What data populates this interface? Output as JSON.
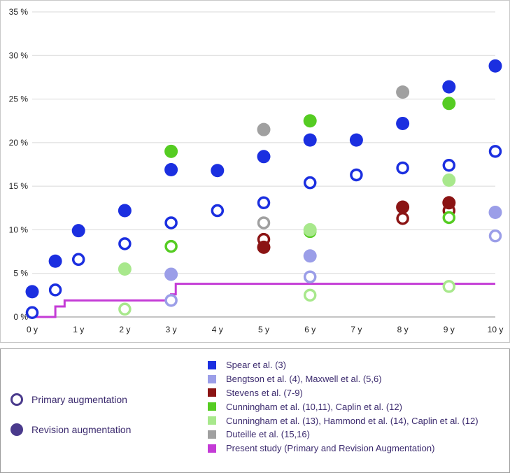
{
  "chart_data": {
    "type": "scatter",
    "title": "",
    "xlabel": "",
    "ylabel": "",
    "x_ticks": [
      "0 y",
      "1 y",
      "2 y",
      "3 y",
      "4 y",
      "5 y",
      "6 y",
      "7 y",
      "8 y",
      "9 y",
      "10 y"
    ],
    "y_ticks": [
      "0 %",
      "5 %",
      "10 %",
      "15 %",
      "20 %",
      "25 %",
      "30 %",
      "35 %"
    ],
    "xlim": [
      0,
      10
    ],
    "ylim": [
      0,
      35
    ],
    "grid": "horizontal",
    "series": [
      {
        "name": "Spear et al. (3)",
        "color": "#1b2fe0",
        "primary": [
          [
            0,
            0.5
          ],
          [
            0.5,
            3.1
          ],
          [
            1,
            6.6
          ],
          [
            2,
            8.4
          ],
          [
            3,
            10.8
          ],
          [
            4,
            12.2
          ],
          [
            5,
            13.1
          ],
          [
            6,
            15.4
          ],
          [
            7,
            16.3
          ],
          [
            8,
            17.1
          ],
          [
            9,
            17.4
          ],
          [
            10,
            19.0
          ]
        ],
        "revision": [
          [
            0,
            2.9
          ],
          [
            0.5,
            6.4
          ],
          [
            1,
            9.9
          ],
          [
            2,
            12.2
          ],
          [
            3,
            16.9
          ],
          [
            4,
            16.8
          ],
          [
            5,
            18.4
          ],
          [
            6,
            20.3
          ],
          [
            7,
            20.3
          ],
          [
            8,
            22.2
          ],
          [
            9,
            26.4
          ],
          [
            10,
            28.8
          ]
        ]
      },
      {
        "name": "Bengtson et al. (4), Maxwell et al. (5,6)",
        "color": "#9b9ee8",
        "primary": [
          [
            3,
            1.9
          ],
          [
            6,
            4.6
          ],
          [
            10,
            9.3
          ]
        ],
        "revision": [
          [
            3,
            4.9
          ],
          [
            6,
            7.0
          ],
          [
            10,
            12.0
          ]
        ]
      },
      {
        "name": "Stevens et al. (7-9)",
        "color": "#8b1414",
        "primary": [
          [
            5,
            8.9
          ],
          [
            8,
            11.3
          ],
          [
            9,
            12.2
          ]
        ],
        "revision": [
          [
            5,
            8.0
          ],
          [
            8,
            12.6
          ],
          [
            9,
            13.1
          ]
        ]
      },
      {
        "name": "Cunningham et al. (10,11), Caplin et al. (12)",
        "color": "#55cc22",
        "primary": [
          [
            3,
            8.1
          ],
          [
            6,
            9.8
          ],
          [
            9,
            11.4
          ]
        ],
        "revision": [
          [
            3,
            19.0
          ],
          [
            6,
            22.5
          ],
          [
            9,
            24.5
          ]
        ]
      },
      {
        "name": "Cunningham et al. (13), Hammond et al. (14), Caplin et al. (12)",
        "color": "#a8e88c",
        "primary": [
          [
            2,
            0.9
          ],
          [
            6,
            2.5
          ],
          [
            9,
            3.5
          ]
        ],
        "revision": [
          [
            2,
            5.5
          ],
          [
            6,
            10.0
          ],
          [
            9,
            15.7
          ]
        ]
      },
      {
        "name": "Duteille et al. (15,16)",
        "color": "#a0a0a0",
        "primary": [
          [
            5,
            10.8
          ]
        ],
        "revision": [
          [
            5,
            21.5
          ],
          [
            8,
            25.8
          ]
        ]
      },
      {
        "name": "Present study (Primary and Revision Augmentation)",
        "color": "#c43bd6",
        "type": "step-line",
        "points": [
          [
            0,
            0
          ],
          [
            0.5,
            0
          ],
          [
            0.5,
            1.2
          ],
          [
            0.7,
            1.2
          ],
          [
            0.7,
            1.9
          ],
          [
            3,
            1.9
          ],
          [
            3,
            2.6
          ],
          [
            3.1,
            2.6
          ],
          [
            3.1,
            3.8
          ],
          [
            10,
            3.8
          ]
        ]
      }
    ]
  },
  "legend": {
    "primary_label": "Primary augmentation",
    "revision_label": "Revision augmentation",
    "marker_color": "#4a3a8c"
  }
}
